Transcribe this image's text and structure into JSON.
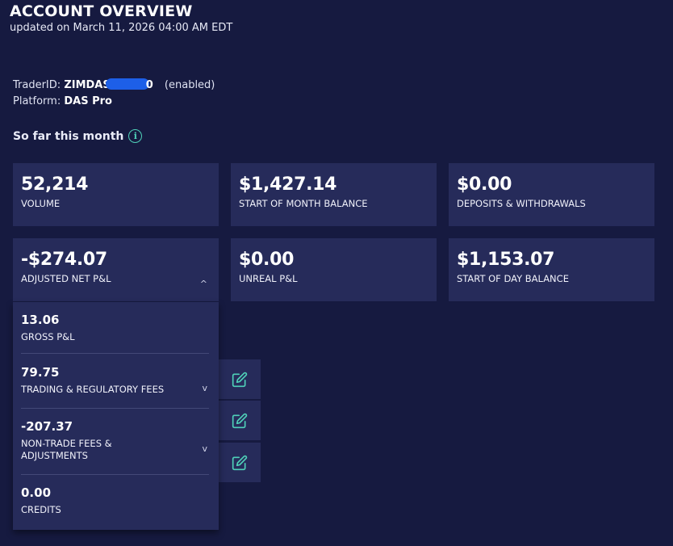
{
  "header": {
    "title": "ACCOUNT OVERVIEW",
    "updated": "updated on March 11, 2026 04:00 AM EDT"
  },
  "trader": {
    "id_label": "TraderID:",
    "id_prefix": "ZIMDAS",
    "id_suffix": "0",
    "status": "(enabled)",
    "platform_label": "Platform:",
    "platform_value": "DAS Pro"
  },
  "period": {
    "label": "So far this month",
    "info_icon": "info-circle-icon"
  },
  "cards": {
    "volume": {
      "value": "52,214",
      "label": "VOLUME"
    },
    "start_month_balance": {
      "value": "$1,427.14",
      "label": "START OF MONTH BALANCE"
    },
    "deposits_withdrawals": {
      "value": "$0.00",
      "label": "DEPOSITS & WITHDRAWALS"
    },
    "adjusted_net_pnl": {
      "value": "-$274.07",
      "label": "ADJUSTED NET P&L",
      "caret": "^"
    },
    "unreal_pnl": {
      "value": "$0.00",
      "label": "UNREAL P&L"
    },
    "start_day_balance": {
      "value": "$1,153.07",
      "label": "START OF DAY BALANCE"
    }
  },
  "breakdown": {
    "gross_pnl": {
      "value": "13.06",
      "label": "GROSS P&L"
    },
    "trading_fees": {
      "value": "79.75",
      "label": "TRADING & REGULATORY FEES",
      "chevron": "v"
    },
    "non_trade_fees": {
      "value": "-207.37",
      "label_line1": "NON-TRADE FEES &",
      "label_line2": "ADJUSTMENTS",
      "chevron": "v"
    },
    "credits": {
      "value": "0.00",
      "label": "CREDITS"
    }
  },
  "colors": {
    "background": "#161a40",
    "card": "#262b5a",
    "accent": "#4fd0b8",
    "redaction": "#1d5fe8"
  },
  "icons": {
    "edit": "edit-pencil-icon"
  }
}
